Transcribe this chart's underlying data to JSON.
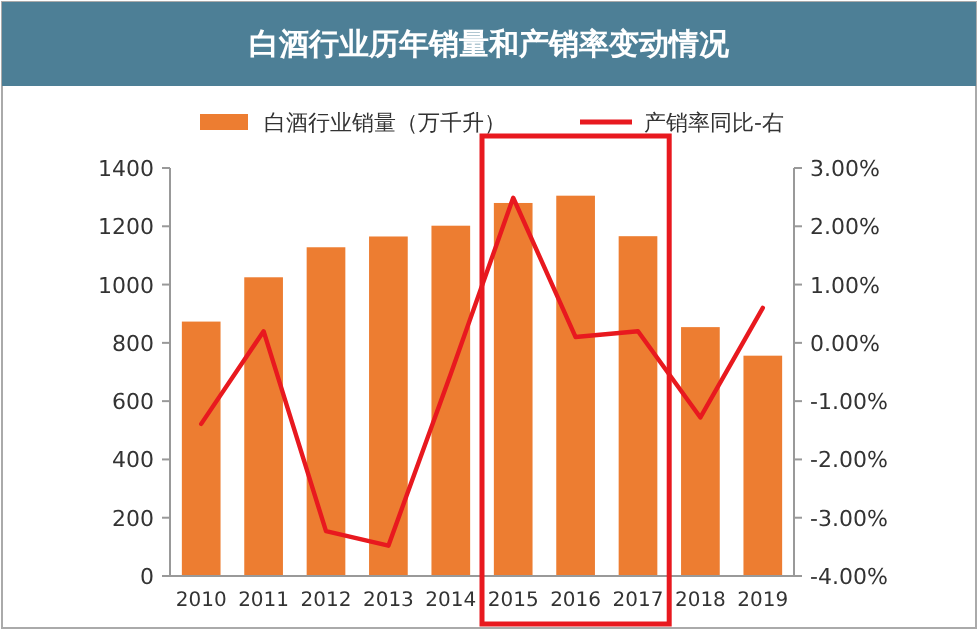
{
  "chart_data": {
    "type": "bar",
    "title": "白酒行业历年销量和产销率变动情况",
    "categories": [
      "2010",
      "2011",
      "2012",
      "2013",
      "2014",
      "2015",
      "2016",
      "2017",
      "2018",
      "2019"
    ],
    "series": [
      {
        "name": "白酒行业销量（万千升）",
        "color": "#ed7d31",
        "values": [
          873,
          1025,
          1128,
          1165,
          1202,
          1280,
          1305,
          1166,
          854,
          756
        ]
      },
      {
        "name": "产销率同比-右",
        "type": "line",
        "axis": "y2",
        "color": "#e8191f",
        "values": [
          -1.39,
          0.2,
          -3.23,
          -3.48,
          -0.53,
          2.49,
          0.1,
          0.2,
          -1.28,
          0.6
        ]
      }
    ],
    "ylim": [
      0,
      1400
    ],
    "yticks": [
      0,
      200,
      400,
      600,
      800,
      1000,
      1200,
      1400
    ],
    "y2lim": [
      -4,
      3
    ],
    "y2ticks": [
      {
        "value": -4,
        "label": "-4.00%"
      },
      {
        "value": -3,
        "label": "-3.00%"
      },
      {
        "value": -2,
        "label": "-2.00%"
      },
      {
        "value": -1,
        "label": "-1.00%"
      },
      {
        "value": 0,
        "label": "0.00%"
      },
      {
        "value": 1,
        "label": "1.00%"
      },
      {
        "value": 2,
        "label": "2.00%"
      },
      {
        "value": 3,
        "label": "3.00%"
      }
    ],
    "legend": "top",
    "grid": false
  }
}
